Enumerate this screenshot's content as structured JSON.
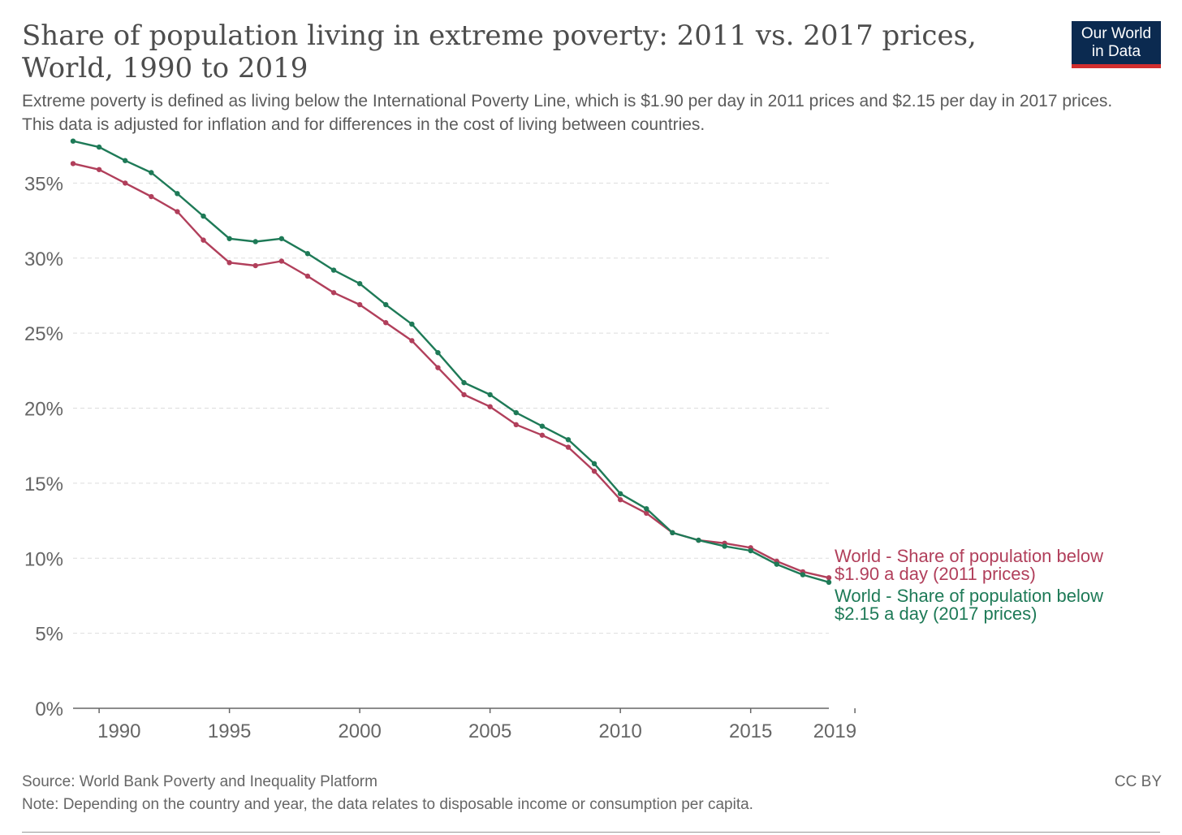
{
  "header": {
    "title": "Share of population living in extreme poverty: 2011 vs. 2017 prices, World, 1990 to 2019",
    "subtitle": "Extreme poverty is defined as living below the International Poverty Line, which is $1.90 per day in 2011 prices and $2.15 per day in 2017 prices. This data is adjusted for inflation and for differences in the cost of living between countries.",
    "logo_line1": "Our World",
    "logo_line2": "in Data"
  },
  "footer": {
    "source": "Source: World Bank Poverty and Inequality Platform",
    "note": "Note: Depending on the country and year, the data relates to disposable income or consumption per capita.",
    "license": "CC BY"
  },
  "colors": {
    "series_2011": "#b13f5b",
    "series_2017": "#1e7a57",
    "grid": "#dddddd",
    "axis": "#666666"
  },
  "chart_data": {
    "type": "line",
    "title": "Share of population living in extreme poverty: 2011 vs. 2017 prices, World, 1990 to 2019",
    "xlim": [
      1989,
      2018
    ],
    "ylim": [
      0,
      38
    ],
    "x_ticks": [
      1990,
      1995,
      2000,
      2005,
      2010,
      2015,
      2019
    ],
    "y_ticks": [
      0,
      5,
      10,
      15,
      20,
      25,
      30,
      35
    ],
    "y_tick_labels": [
      "0%",
      "5%",
      "10%",
      "15%",
      "20%",
      "25%",
      "30%",
      "35%"
    ],
    "grid": true,
    "legend": "inline at right end of lines",
    "x": [
      1989,
      1990,
      1991,
      1992,
      1993,
      1994,
      1995,
      1996,
      1997,
      1998,
      1999,
      2000,
      2001,
      2002,
      2003,
      2004,
      2005,
      2006,
      2007,
      2008,
      2009,
      2010,
      2011,
      2012,
      2013,
      2014,
      2015,
      2016,
      2017,
      2018
    ],
    "series": [
      {
        "name": "World - Share of population below $1.90 a day (2011 prices)",
        "label_line1": "World - Share of population below",
        "label_line2": "$1.90 a day (2011 prices)",
        "color": "#b13f5b",
        "values": [
          36.3,
          35.9,
          35.0,
          34.1,
          33.1,
          31.2,
          29.7,
          29.5,
          29.8,
          28.8,
          27.7,
          26.9,
          25.7,
          24.5,
          22.7,
          20.9,
          20.1,
          18.9,
          18.2,
          17.4,
          15.8,
          13.9,
          13.0,
          11.7,
          11.2,
          11.0,
          10.7,
          9.8,
          9.1,
          8.7
        ]
      },
      {
        "name": "World - Share of population below $2.15 a day (2017 prices)",
        "label_line1": "World - Share of population below",
        "label_line2": "$2.15 a day (2017 prices)",
        "color": "#1e7a57",
        "values": [
          37.8,
          37.4,
          36.5,
          35.7,
          34.3,
          32.8,
          31.3,
          31.1,
          31.3,
          30.3,
          29.2,
          28.3,
          26.9,
          25.6,
          23.7,
          21.7,
          20.9,
          19.7,
          18.8,
          17.9,
          16.3,
          14.3,
          13.3,
          11.7,
          11.2,
          10.8,
          10.5,
          9.6,
          8.9,
          8.4
        ]
      }
    ]
  }
}
